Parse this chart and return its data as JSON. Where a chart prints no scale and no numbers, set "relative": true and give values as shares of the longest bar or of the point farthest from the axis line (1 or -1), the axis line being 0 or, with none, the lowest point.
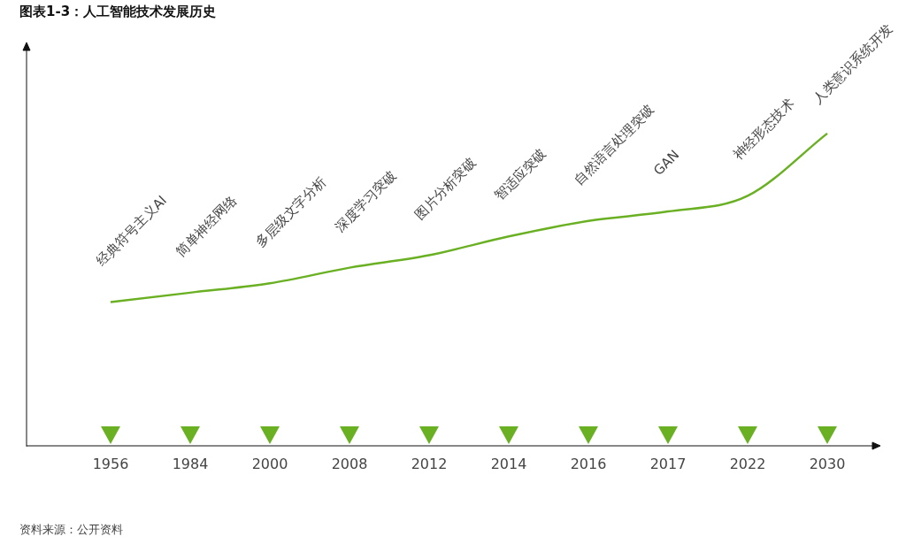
{
  "chart_data": {
    "type": "line",
    "title": "图表1-3：人工智能技术发展历史",
    "categories": [
      "1956",
      "1984",
      "2000",
      "2008",
      "2012",
      "2014",
      "2016",
      "2017",
      "2022",
      "2030"
    ],
    "series": [
      {
        "color": "#6ab023",
        "values": [
          0.46,
          0.49,
          0.52,
          0.57,
          0.61,
          0.67,
          0.72,
          0.75,
          0.8,
          1.0
        ]
      }
    ],
    "relative": true,
    "grid": false,
    "legend": false,
    "annotations": [
      "经典符号主义AI",
      "简单神经网络",
      "多层级文字分析",
      "深度学习突破",
      "图片分析突破",
      "智适应突破",
      "自然语言处理突破",
      "GAN",
      "神经形态技术",
      "人类意识系统开发",
      "资料来源：公开资料"
    ]
  }
}
